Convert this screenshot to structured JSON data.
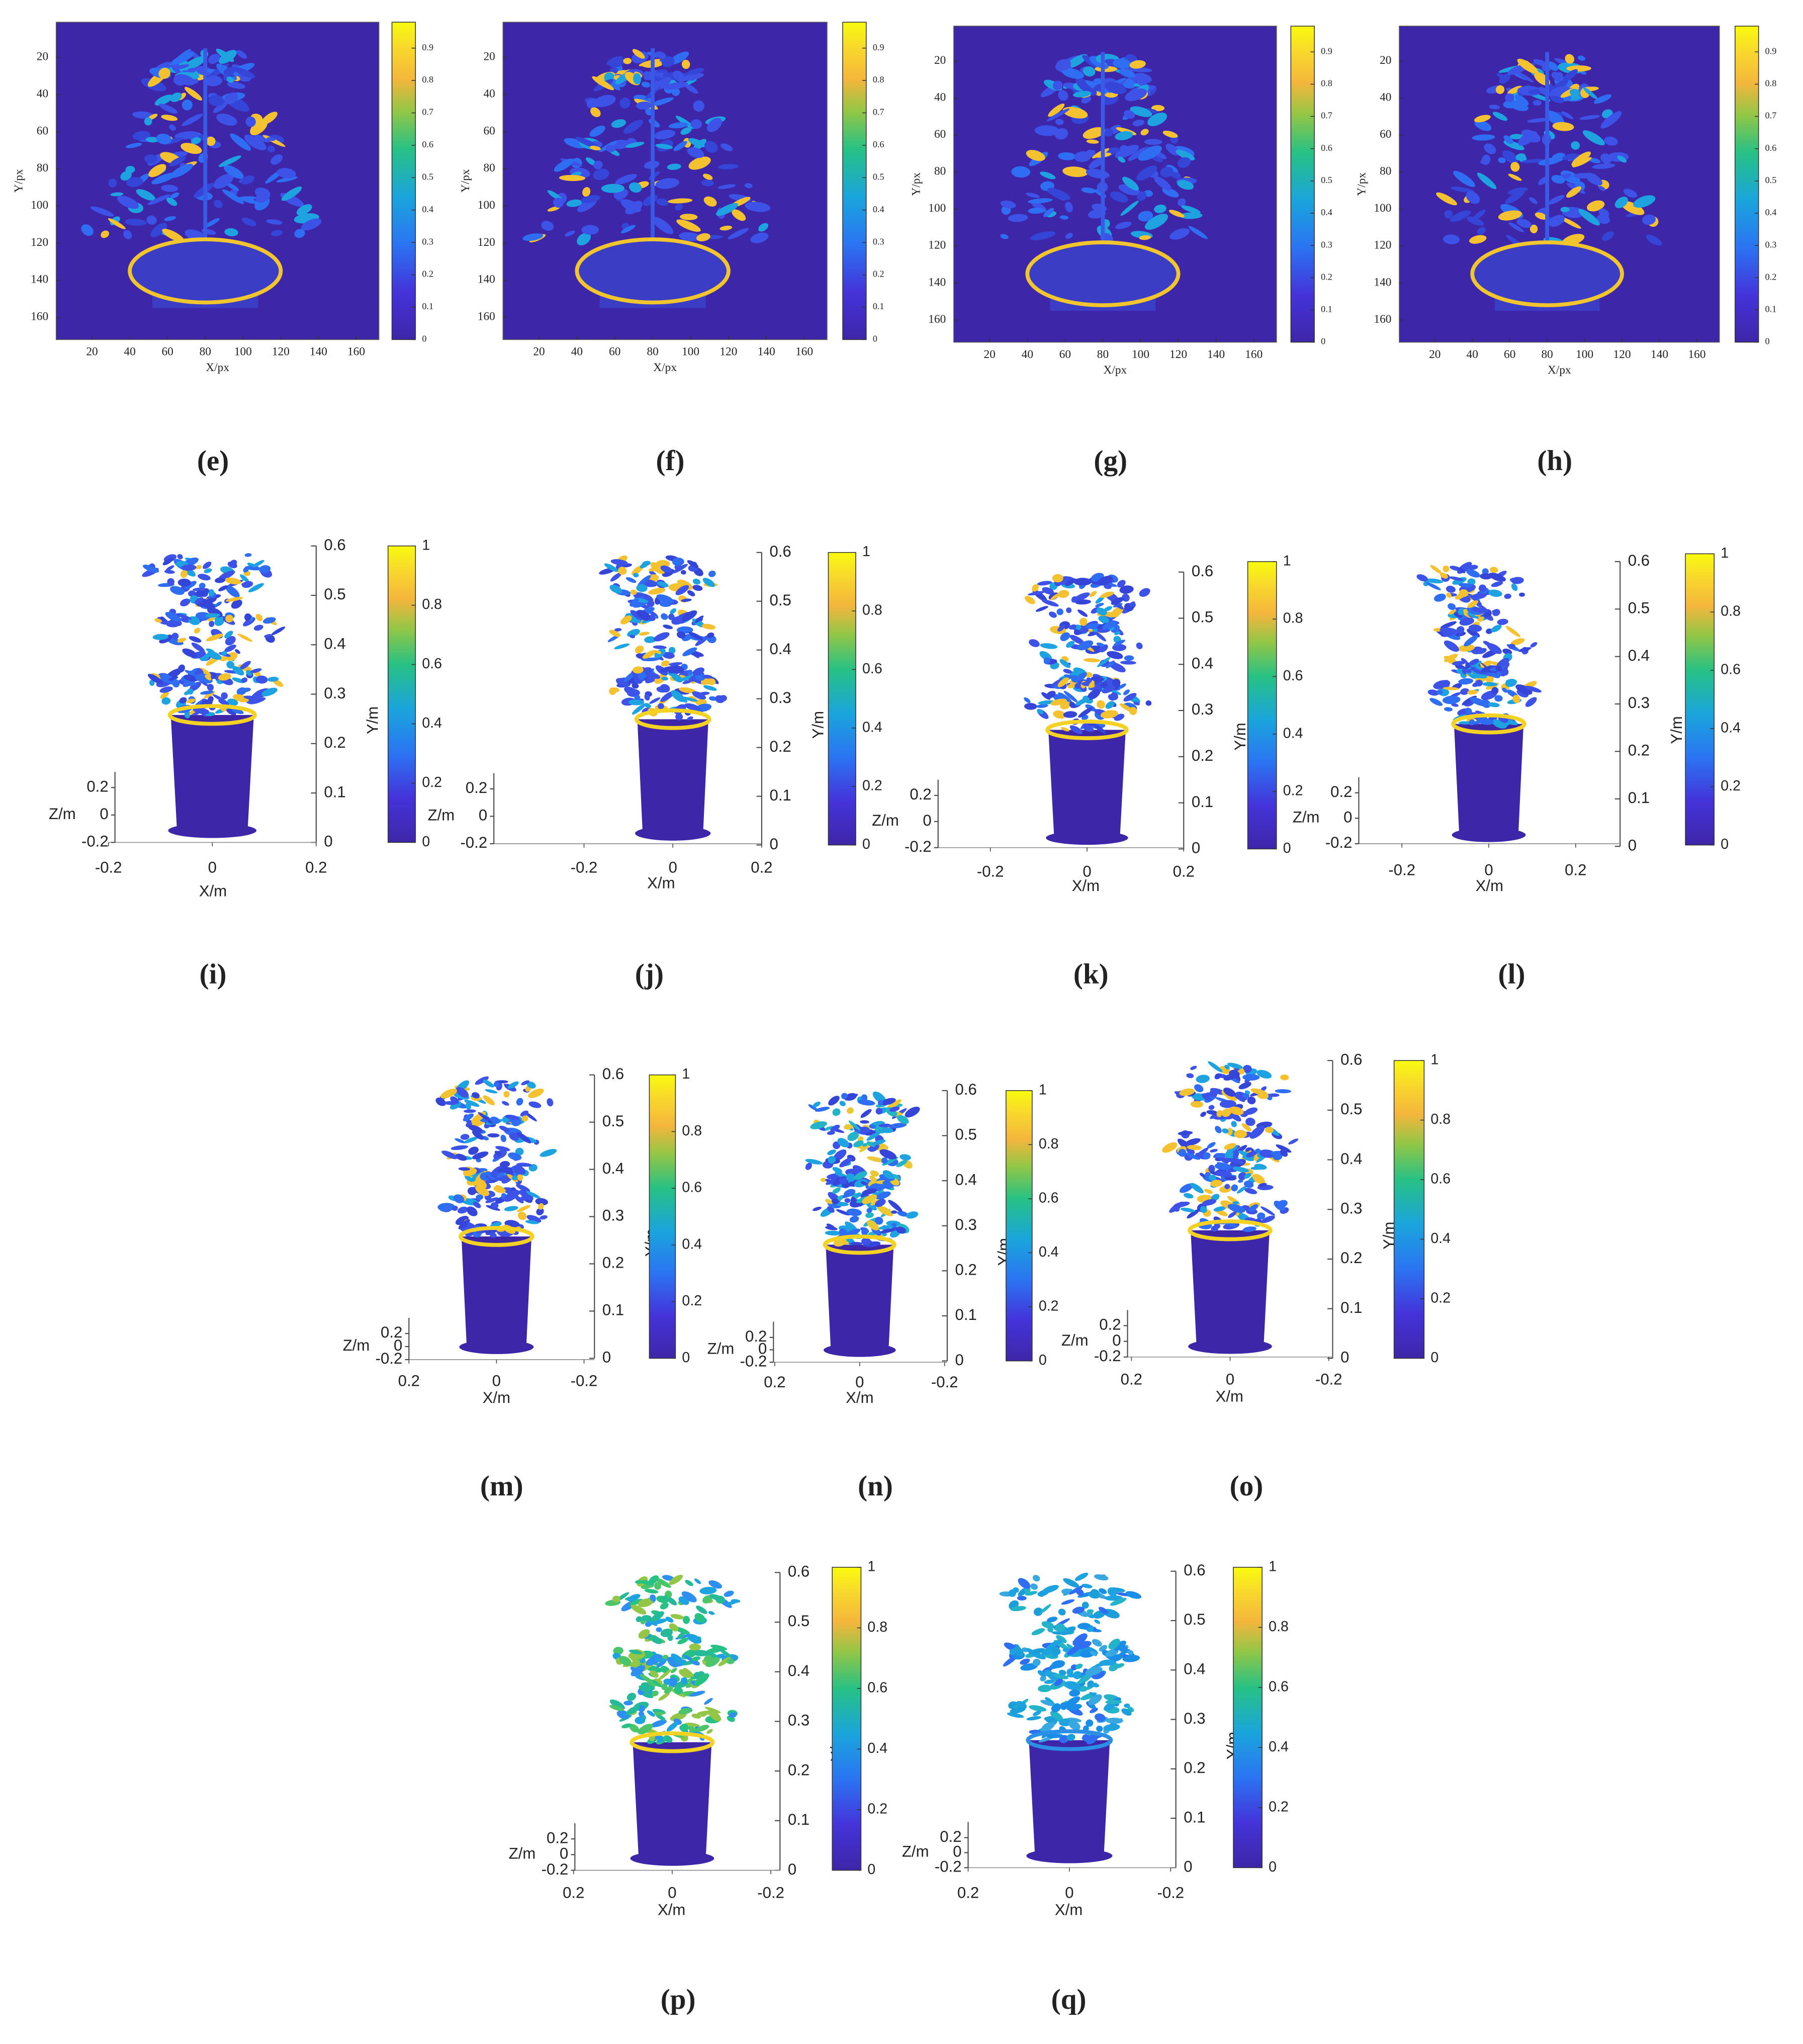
{
  "chart_data": [
    {
      "type": "heatmap",
      "caption": "(e)",
      "xlabel": "X/px",
      "ylabel": "Y/px",
      "xlim": [
        1,
        172
      ],
      "ylim": [
        1,
        172
      ],
      "y_reverse": true,
      "xticks": [
        20,
        40,
        60,
        80,
        100,
        120,
        140,
        160
      ],
      "yticks": [
        20,
        40,
        60,
        80,
        100,
        120,
        140,
        160
      ],
      "clim": [
        0,
        0.98
      ],
      "cticks": [
        0,
        0.1,
        0.2,
        0.3,
        0.4,
        0.5,
        0.6,
        0.7,
        0.8,
        0.9
      ]
    },
    {
      "type": "heatmap",
      "caption": "(f)",
      "xlabel": "X/px",
      "ylabel": "Y/px",
      "xlim": [
        1,
        172
      ],
      "ylim": [
        1,
        172
      ],
      "y_reverse": true,
      "xticks": [
        20,
        40,
        60,
        80,
        100,
        120,
        140,
        160
      ],
      "yticks": [
        20,
        40,
        60,
        80,
        100,
        120,
        140,
        160
      ],
      "clim": [
        0,
        0.98
      ],
      "cticks": [
        0,
        0.1,
        0.2,
        0.3,
        0.4,
        0.5,
        0.6,
        0.7,
        0.8,
        0.9
      ]
    },
    {
      "type": "heatmap",
      "caption": "(g)",
      "xlabel": "X/px",
      "ylabel": "Y/px",
      "xlim": [
        1,
        172
      ],
      "ylim": [
        1,
        172
      ],
      "y_reverse": true,
      "xticks": [
        20,
        40,
        60,
        80,
        100,
        120,
        140,
        160
      ],
      "yticks": [
        20,
        40,
        60,
        80,
        100,
        120,
        140,
        160
      ],
      "clim": [
        0,
        0.98
      ],
      "cticks": [
        0,
        0.1,
        0.2,
        0.3,
        0.4,
        0.5,
        0.6,
        0.7,
        0.8,
        0.9
      ]
    },
    {
      "type": "heatmap",
      "caption": "(h)",
      "xlabel": "X/px",
      "ylabel": "Y/px",
      "xlim": [
        1,
        172
      ],
      "ylim": [
        1,
        172
      ],
      "y_reverse": true,
      "xticks": [
        20,
        40,
        60,
        80,
        100,
        120,
        140,
        160
      ],
      "yticks": [
        20,
        40,
        60,
        80,
        100,
        120,
        140,
        160
      ],
      "clim": [
        0,
        0.98
      ],
      "cticks": [
        0,
        0.1,
        0.2,
        0.3,
        0.4,
        0.5,
        0.6,
        0.7,
        0.8,
        0.9
      ]
    },
    {
      "type": "scatter3d",
      "caption": "(i)",
      "xlabel": "X/m",
      "ylabel": "Y/m",
      "zlabel": "Z/m",
      "xlim": [
        -0.2,
        0.2
      ],
      "xticks": [
        -0.2,
        0,
        0.2
      ],
      "ylim": [
        0,
        0.6
      ],
      "yticks": [
        0,
        0.1,
        0.2,
        0.3,
        0.4,
        0.5,
        0.6
      ],
      "zlim": [
        -0.2,
        0.2
      ],
      "zticks": [
        -0.2,
        0,
        0.2
      ],
      "clim": [
        0,
        1
      ],
      "cticks": [
        0,
        0.2,
        0.4,
        0.6,
        0.8,
        1
      ]
    },
    {
      "type": "scatter3d",
      "caption": "(j)",
      "xlabel": "X/m",
      "ylabel": "Y/m",
      "zlabel": "Z/m",
      "xlim": [
        -0.2,
        0.2
      ],
      "xticks": [
        -0.2,
        0,
        0.2
      ],
      "ylim": [
        0,
        0.6
      ],
      "yticks": [
        0,
        0.1,
        0.2,
        0.3,
        0.4,
        0.5,
        0.6
      ],
      "zlim": [
        -0.2,
        0.2
      ],
      "zticks": [
        -0.2,
        0,
        0.2
      ],
      "clim": [
        0,
        1
      ],
      "cticks": [
        0,
        0.2,
        0.4,
        0.6,
        0.8,
        1
      ]
    },
    {
      "type": "scatter3d",
      "caption": "(k)",
      "xlabel": "X/m",
      "ylabel": "Y/m",
      "zlabel": "Z/m",
      "xlim": [
        -0.2,
        0.2
      ],
      "xticks": [
        -0.2,
        0,
        0.2
      ],
      "ylim": [
        0,
        0.6
      ],
      "yticks": [
        0,
        0.1,
        0.2,
        0.3,
        0.4,
        0.5,
        0.6
      ],
      "zlim": [
        -0.2,
        0.2
      ],
      "zticks": [
        -0.2,
        0,
        0.2
      ],
      "clim": [
        0,
        1
      ],
      "cticks": [
        0,
        0.2,
        0.4,
        0.6,
        0.8,
        1
      ]
    },
    {
      "type": "scatter3d",
      "caption": "(l)",
      "xlabel": "X/m",
      "ylabel": "Y/m",
      "zlabel": "Z/m",
      "xlim": [
        -0.2,
        0.2
      ],
      "xticks": [
        -0.2,
        0,
        0.2
      ],
      "ylim": [
        0,
        0.6
      ],
      "yticks": [
        0,
        0.1,
        0.2,
        0.3,
        0.4,
        0.5,
        0.6
      ],
      "zlim": [
        -0.2,
        0.2
      ],
      "zticks": [
        -0.2,
        0,
        0.2
      ],
      "clim": [
        0,
        1
      ],
      "cticks": [
        0,
        0.2,
        0.4,
        0.6,
        0.8,
        1
      ]
    },
    {
      "type": "scatter3d",
      "caption": "(m)",
      "xlabel": "X/m",
      "ylabel": "Y/m",
      "zlabel": "Z/m",
      "xlim": [
        0.2,
        -0.2
      ],
      "xticks": [
        0.2,
        0,
        -0.2
      ],
      "ylim": [
        0,
        0.6
      ],
      "yticks": [
        0,
        0.1,
        0.2,
        0.3,
        0.4,
        0.5,
        0.6
      ],
      "zlim": [
        -0.2,
        0.2
      ],
      "zticks": [
        -0.2,
        0,
        0.2
      ],
      "clim": [
        0,
        1
      ],
      "cticks": [
        0,
        0.2,
        0.4,
        0.6,
        0.8,
        1
      ]
    },
    {
      "type": "scatter3d",
      "caption": "(n)",
      "xlabel": "X/m",
      "ylabel": "Y/m",
      "zlabel": "Z/m",
      "xlim": [
        0.2,
        -0.2
      ],
      "xticks": [
        0.2,
        0,
        -0.2
      ],
      "ylim": [
        0,
        0.6
      ],
      "yticks": [
        0,
        0.1,
        0.2,
        0.3,
        0.4,
        0.5,
        0.6
      ],
      "zlim": [
        -0.2,
        0.2
      ],
      "zticks": [
        -0.2,
        0,
        0.2
      ],
      "clim": [
        0,
        1
      ],
      "cticks": [
        0,
        0.2,
        0.4,
        0.6,
        0.8,
        1
      ]
    },
    {
      "type": "scatter3d",
      "caption": "(o)",
      "xlabel": "X/m",
      "ylabel": "Y/m",
      "zlabel": "Z/m",
      "xlim": [
        0.2,
        -0.2
      ],
      "xticks": [
        0.2,
        0,
        -0.2
      ],
      "ylim": [
        0,
        0.6
      ],
      "yticks": [
        0,
        0.1,
        0.2,
        0.3,
        0.4,
        0.5,
        0.6
      ],
      "zlim": [
        -0.2,
        0.2
      ],
      "zticks": [
        -0.2,
        0,
        0.2
      ],
      "clim": [
        0,
        1
      ],
      "cticks": [
        0,
        0.2,
        0.4,
        0.6,
        0.8,
        1
      ]
    },
    {
      "type": "scatter3d",
      "caption": "(p)",
      "xlabel": "X/m",
      "ylabel": "Y/m",
      "zlabel": "Z/m",
      "xlim": [
        0.2,
        -0.2
      ],
      "xticks": [
        0.2,
        0,
        -0.2
      ],
      "ylim": [
        0,
        0.6
      ],
      "yticks": [
        0,
        0.1,
        0.2,
        0.3,
        0.4,
        0.5,
        0.6
      ],
      "zlim": [
        -0.2,
        0.2
      ],
      "zticks": [
        -0.2,
        0,
        0.2
      ],
      "clim": [
        0,
        1
      ],
      "cticks": [
        0,
        0.2,
        0.4,
        0.6,
        0.8,
        1
      ]
    },
    {
      "type": "scatter3d",
      "caption": "(q)",
      "xlabel": "X/m",
      "ylabel": "Y/m",
      "zlabel": "Z/m",
      "xlim": [
        0.2,
        -0.2
      ],
      "xticks": [
        0.2,
        0,
        -0.2
      ],
      "ylim": [
        0,
        0.6
      ],
      "yticks": [
        0,
        0.1,
        0.2,
        0.3,
        0.4,
        0.5,
        0.6
      ],
      "zlim": [
        -0.2,
        0.2
      ],
      "zticks": [
        -0.2,
        0,
        0.2
      ],
      "clim": [
        0,
        1
      ],
      "cticks": [
        0,
        0.2,
        0.4,
        0.6,
        0.8,
        1
      ]
    }
  ]
}
